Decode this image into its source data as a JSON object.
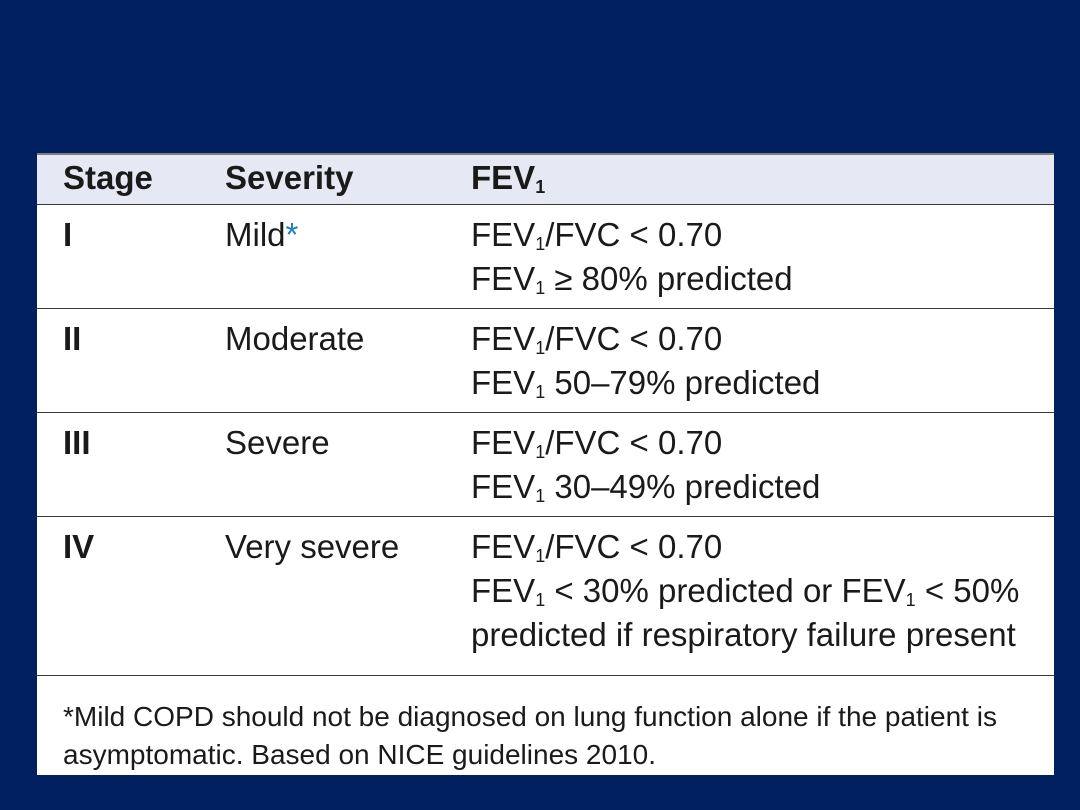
{
  "table": {
    "headers": {
      "stage": "Stage",
      "severity": "Severity",
      "fev_main": "FEV",
      "fev_sub": "1"
    },
    "rows": [
      {
        "stage": "I",
        "severity": "Mild",
        "severity_mark": "*",
        "line1": {
          "a": "FEV",
          "sub": "1",
          "b": "/FVC < 0.70"
        },
        "line2": {
          "a": "FEV",
          "sub": "1",
          "b": " ≥ 80% predicted"
        }
      },
      {
        "stage": "II",
        "severity": "Moderate",
        "line1": {
          "a": "FEV",
          "sub": "1",
          "b": "/FVC < 0.70"
        },
        "line2": {
          "a": "FEV",
          "sub": "1",
          "b": " 50–79% predicted"
        }
      },
      {
        "stage": "III",
        "severity": "Severe",
        "line1": {
          "a": "FEV",
          "sub": "1",
          "b": "/FVC < 0.70"
        },
        "line2": {
          "a": "FEV",
          "sub": "1",
          "b": " 30–49% predicted"
        }
      },
      {
        "stage": "IV",
        "severity": "Very severe",
        "line1": {
          "a": "FEV",
          "sub": "1",
          "b": "/FVC < 0.70"
        },
        "line2": {
          "a": "FEV",
          "sub": "1",
          "b": " < 30% predicted or FEV",
          "sub2": "1",
          "c": " < 50%"
        },
        "line3": "predicted if respiratory failure present"
      }
    ]
  },
  "footnote": "*Mild COPD should not be diagnosed on lung function alone if the patient is asymptomatic.  Based on NICE guidelines 2010.",
  "colors": {
    "background": "#00205f",
    "header_fill": "#e6e9f4",
    "asterisk": "#1f7db8"
  }
}
